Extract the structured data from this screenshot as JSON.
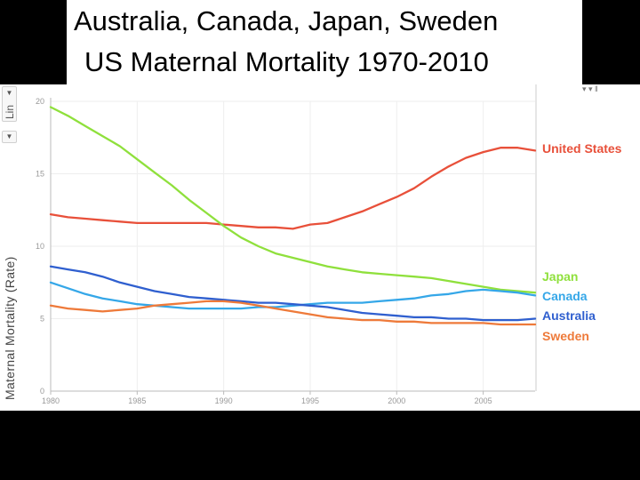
{
  "title": {
    "line1": "Australia, Canada, Japan, Sweden",
    "line2": "US Maternal Mortality 1970-2010"
  },
  "controls": {
    "scale_label": "Lin",
    "scale_arrow": "▼",
    "ylabel_arrow": "▼",
    "top_right_icons": "▾   ▾   ‖"
  },
  "colors": {
    "United States": "#e8503a",
    "Japan": "#8fe03c",
    "Canada": "#35a7e8",
    "Australia": "#2f5fcf",
    "Sweden": "#ee7a3a"
  },
  "chart_data": {
    "type": "line",
    "title": "Australia, Canada, Japan, Sweden US Maternal Mortality 1970-2010",
    "xlabel": "",
    "ylabel": "Maternal Mortality (Rate)",
    "xlim": [
      1980,
      2008
    ],
    "ylim": [
      0,
      20
    ],
    "xticks": [
      1980,
      1985,
      1990,
      1995,
      2000,
      2005
    ],
    "yticks": [
      0,
      5,
      10,
      15,
      20
    ],
    "grid": true,
    "legend": "right (end-of-line labels)",
    "x": [
      1980,
      1981,
      1982,
      1983,
      1984,
      1985,
      1986,
      1987,
      1988,
      1989,
      1990,
      1991,
      1992,
      1993,
      1994,
      1995,
      1996,
      1997,
      1998,
      1999,
      2000,
      2001,
      2002,
      2003,
      2004,
      2005,
      2006,
      2007,
      2008
    ],
    "series": [
      {
        "name": "United States",
        "values": [
          12.2,
          12.0,
          11.9,
          11.8,
          11.7,
          11.6,
          11.6,
          11.6,
          11.6,
          11.6,
          11.5,
          11.4,
          11.3,
          11.3,
          11.2,
          11.5,
          11.6,
          12.0,
          12.4,
          12.9,
          13.4,
          14.0,
          14.8,
          15.5,
          16.1,
          16.5,
          16.8,
          16.8,
          16.6
        ]
      },
      {
        "name": "Japan",
        "values": [
          19.6,
          19.0,
          18.3,
          17.6,
          16.9,
          16.0,
          15.1,
          14.2,
          13.2,
          12.3,
          11.4,
          10.6,
          10.0,
          9.5,
          9.2,
          8.9,
          8.6,
          8.4,
          8.2,
          8.1,
          8.0,
          7.9,
          7.8,
          7.6,
          7.4,
          7.2,
          7.0,
          6.9,
          6.8
        ]
      },
      {
        "name": "Canada",
        "values": [
          7.5,
          7.1,
          6.7,
          6.4,
          6.2,
          6.0,
          5.9,
          5.8,
          5.7,
          5.7,
          5.7,
          5.7,
          5.8,
          5.8,
          5.9,
          6.0,
          6.1,
          6.1,
          6.1,
          6.2,
          6.3,
          6.4,
          6.6,
          6.7,
          6.9,
          7.0,
          6.9,
          6.8,
          6.6
        ]
      },
      {
        "name": "Australia",
        "values": [
          8.6,
          8.4,
          8.2,
          7.9,
          7.5,
          7.2,
          6.9,
          6.7,
          6.5,
          6.4,
          6.3,
          6.2,
          6.1,
          6.1,
          6.0,
          5.9,
          5.8,
          5.6,
          5.4,
          5.3,
          5.2,
          5.1,
          5.1,
          5.0,
          5.0,
          4.9,
          4.9,
          4.9,
          5.0
        ]
      },
      {
        "name": "Sweden",
        "values": [
          5.9,
          5.7,
          5.6,
          5.5,
          5.6,
          5.7,
          5.9,
          6.0,
          6.1,
          6.2,
          6.2,
          6.1,
          5.9,
          5.7,
          5.5,
          5.3,
          5.1,
          5.0,
          4.9,
          4.9,
          4.8,
          4.8,
          4.7,
          4.7,
          4.7,
          4.7,
          4.6,
          4.6,
          4.6
        ]
      }
    ]
  }
}
